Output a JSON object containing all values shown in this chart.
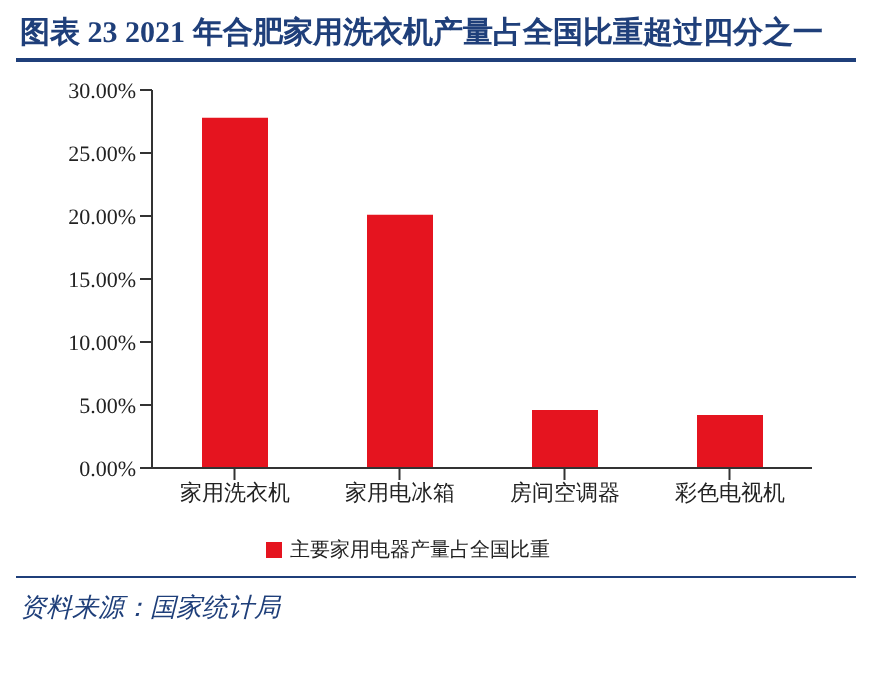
{
  "chart_data": {
    "type": "bar",
    "title": "图表 23  2021 年合肥家用洗衣机产量占全国比重超过四分之一",
    "categories": [
      "家用洗衣机",
      "家用电冰箱",
      "房间空调器",
      "彩色电视机"
    ],
    "series": [
      {
        "name": "主要家用电器产量占全国比重",
        "color": "#e5141f",
        "values": [
          27.8,
          20.1,
          4.6,
          4.2
        ]
      }
    ],
    "ylim": [
      0,
      30
    ],
    "yticks": [
      {
        "value": 0,
        "label": "0.00%"
      },
      {
        "value": 5,
        "label": "5.00%"
      },
      {
        "value": 10,
        "label": "10.00%"
      },
      {
        "value": 15,
        "label": "15.00%"
      },
      {
        "value": 20,
        "label": "20.00%"
      },
      {
        "value": 25,
        "label": "25.00%"
      },
      {
        "value": 30,
        "label": "30.00%"
      }
    ],
    "grid": false,
    "legend": "bottom",
    "annotations": [
      "资料来源：国家统计局"
    ]
  }
}
